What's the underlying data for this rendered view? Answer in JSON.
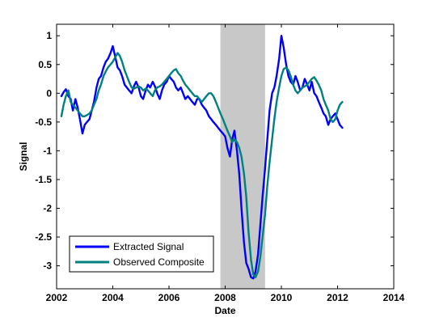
{
  "chart_data": {
    "type": "line",
    "xlabel": "Date",
    "ylabel": "Signal",
    "xlim": [
      2002,
      2014
    ],
    "ylim": [
      -3.4,
      1.2
    ],
    "xticks": [
      2002,
      2004,
      2006,
      2008,
      2010,
      2012,
      2014
    ],
    "yticks": [
      1,
      0.5,
      0,
      -0.5,
      -1,
      -1.5,
      -2,
      -2.5,
      -3
    ],
    "ytick_labels": [
      "1",
      "0.5",
      "0",
      "-0.5",
      "-1",
      "-1.5",
      "-2",
      "-2.5",
      "-3"
    ],
    "grid": false,
    "legend_position": "bottom-left",
    "shaded_region": {
      "x_start": 2007.83,
      "x_end": 2009.42,
      "color": "#c8c8c8"
    },
    "series": [
      {
        "name": "Extracted Signal",
        "color": "#0000ff",
        "points": [
          [
            2002.17,
            -0.05
          ],
          [
            2002.25,
            0.02
          ],
          [
            2002.33,
            0.07
          ],
          [
            2002.42,
            -0.05
          ],
          [
            2002.5,
            -0.1
          ],
          [
            2002.58,
            -0.3
          ],
          [
            2002.67,
            -0.1
          ],
          [
            2002.75,
            -0.25
          ],
          [
            2002.83,
            -0.45
          ],
          [
            2002.92,
            -0.7
          ],
          [
            2003.0,
            -0.55
          ],
          [
            2003.08,
            -0.5
          ],
          [
            2003.17,
            -0.45
          ],
          [
            2003.25,
            -0.3
          ],
          [
            2003.33,
            -0.15
          ],
          [
            2003.42,
            0.1
          ],
          [
            2003.5,
            0.25
          ],
          [
            2003.58,
            0.3
          ],
          [
            2003.67,
            0.45
          ],
          [
            2003.75,
            0.55
          ],
          [
            2003.83,
            0.6
          ],
          [
            2003.92,
            0.7
          ],
          [
            2004.0,
            0.82
          ],
          [
            2004.08,
            0.65
          ],
          [
            2004.17,
            0.45
          ],
          [
            2004.25,
            0.4
          ],
          [
            2004.33,
            0.3
          ],
          [
            2004.42,
            0.15
          ],
          [
            2004.5,
            0.1
          ],
          [
            2004.58,
            0.05
          ],
          [
            2004.67,
            0.0
          ],
          [
            2004.75,
            0.12
          ],
          [
            2004.83,
            0.2
          ],
          [
            2004.92,
            0.1
          ],
          [
            2005.0,
            -0.05
          ],
          [
            2005.08,
            -0.1
          ],
          [
            2005.17,
            0.05
          ],
          [
            2005.25,
            0.15
          ],
          [
            2005.33,
            0.1
          ],
          [
            2005.42,
            0.2
          ],
          [
            2005.5,
            0.12
          ],
          [
            2005.58,
            0.0
          ],
          [
            2005.67,
            -0.1
          ],
          [
            2005.75,
            0.05
          ],
          [
            2005.83,
            0.15
          ],
          [
            2005.92,
            0.2
          ],
          [
            2006.0,
            0.3
          ],
          [
            2006.08,
            0.25
          ],
          [
            2006.17,
            0.2
          ],
          [
            2006.25,
            0.1
          ],
          [
            2006.33,
            0.05
          ],
          [
            2006.42,
            0.1
          ],
          [
            2006.5,
            0.0
          ],
          [
            2006.58,
            -0.1
          ],
          [
            2006.67,
            -0.05
          ],
          [
            2006.75,
            -0.1
          ],
          [
            2006.83,
            -0.15
          ],
          [
            2006.92,
            -0.2
          ],
          [
            2007.0,
            -0.1
          ],
          [
            2007.08,
            -0.1
          ],
          [
            2007.17,
            -0.2
          ],
          [
            2007.25,
            -0.25
          ],
          [
            2007.33,
            -0.3
          ],
          [
            2007.42,
            -0.4
          ],
          [
            2007.5,
            -0.45
          ],
          [
            2007.58,
            -0.5
          ],
          [
            2007.67,
            -0.55
          ],
          [
            2007.75,
            -0.6
          ],
          [
            2007.83,
            -0.65
          ],
          [
            2007.92,
            -0.7
          ],
          [
            2008.0,
            -0.75
          ],
          [
            2008.08,
            -0.95
          ],
          [
            2008.17,
            -1.1
          ],
          [
            2008.25,
            -0.8
          ],
          [
            2008.33,
            -0.65
          ],
          [
            2008.42,
            -1.0
          ],
          [
            2008.5,
            -1.4
          ],
          [
            2008.58,
            -2.0
          ],
          [
            2008.67,
            -2.6
          ],
          [
            2008.75,
            -2.95
          ],
          [
            2008.83,
            -3.05
          ],
          [
            2008.92,
            -3.2
          ],
          [
            2009.0,
            -3.22
          ],
          [
            2009.08,
            -3.1
          ],
          [
            2009.17,
            -2.8
          ],
          [
            2009.25,
            -2.3
          ],
          [
            2009.33,
            -1.8
          ],
          [
            2009.42,
            -1.3
          ],
          [
            2009.5,
            -0.8
          ],
          [
            2009.58,
            -0.3
          ],
          [
            2009.67,
            0.0
          ],
          [
            2009.75,
            0.1
          ],
          [
            2009.83,
            0.3
          ],
          [
            2009.92,
            0.6
          ],
          [
            2010.0,
            1.0
          ],
          [
            2010.08,
            0.8
          ],
          [
            2010.17,
            0.5
          ],
          [
            2010.25,
            0.3
          ],
          [
            2010.33,
            0.2
          ],
          [
            2010.42,
            0.15
          ],
          [
            2010.5,
            0.3
          ],
          [
            2010.58,
            0.2
          ],
          [
            2010.67,
            0.05
          ],
          [
            2010.75,
            0.1
          ],
          [
            2010.83,
            0.25
          ],
          [
            2010.92,
            0.15
          ],
          [
            2011.0,
            0.05
          ],
          [
            2011.08,
            0.2
          ],
          [
            2011.17,
            0.0
          ],
          [
            2011.25,
            -0.05
          ],
          [
            2011.33,
            -0.15
          ],
          [
            2011.42,
            -0.25
          ],
          [
            2011.5,
            -0.35
          ],
          [
            2011.58,
            -0.4
          ],
          [
            2011.67,
            -0.55
          ],
          [
            2011.75,
            -0.45
          ],
          [
            2011.83,
            -0.4
          ],
          [
            2011.92,
            -0.35
          ],
          [
            2012.0,
            -0.45
          ],
          [
            2012.08,
            -0.55
          ],
          [
            2012.17,
            -0.6
          ]
        ]
      },
      {
        "name": "Observed Composite",
        "color": "#008080",
        "points": [
          [
            2002.17,
            -0.4
          ],
          [
            2002.25,
            -0.2
          ],
          [
            2002.33,
            -0.05
          ],
          [
            2002.42,
            0.05
          ],
          [
            2002.5,
            -0.15
          ],
          [
            2002.58,
            -0.2
          ],
          [
            2002.67,
            -0.25
          ],
          [
            2002.75,
            -0.3
          ],
          [
            2002.83,
            -0.35
          ],
          [
            2002.92,
            -0.4
          ],
          [
            2003.0,
            -0.4
          ],
          [
            2003.08,
            -0.38
          ],
          [
            2003.17,
            -0.35
          ],
          [
            2003.25,
            -0.3
          ],
          [
            2003.33,
            -0.2
          ],
          [
            2003.42,
            -0.1
          ],
          [
            2003.5,
            0.05
          ],
          [
            2003.58,
            0.15
          ],
          [
            2003.67,
            0.3
          ],
          [
            2003.75,
            0.38
          ],
          [
            2003.83,
            0.45
          ],
          [
            2003.92,
            0.5
          ],
          [
            2004.0,
            0.55
          ],
          [
            2004.08,
            0.62
          ],
          [
            2004.17,
            0.7
          ],
          [
            2004.25,
            0.65
          ],
          [
            2004.33,
            0.55
          ],
          [
            2004.42,
            0.4
          ],
          [
            2004.5,
            0.3
          ],
          [
            2004.58,
            0.2
          ],
          [
            2004.67,
            0.1
          ],
          [
            2004.75,
            0.08
          ],
          [
            2004.83,
            0.1
          ],
          [
            2004.92,
            0.12
          ],
          [
            2005.0,
            0.1
          ],
          [
            2005.08,
            0.05
          ],
          [
            2005.17,
            0.08
          ],
          [
            2005.25,
            0.05
          ],
          [
            2005.33,
            0.0
          ],
          [
            2005.42,
            -0.05
          ],
          [
            2005.5,
            0.05
          ],
          [
            2005.58,
            0.1
          ],
          [
            2005.67,
            0.12
          ],
          [
            2005.75,
            0.15
          ],
          [
            2005.83,
            0.2
          ],
          [
            2005.92,
            0.25
          ],
          [
            2006.0,
            0.3
          ],
          [
            2006.08,
            0.35
          ],
          [
            2006.17,
            0.4
          ],
          [
            2006.25,
            0.42
          ],
          [
            2006.33,
            0.35
          ],
          [
            2006.42,
            0.3
          ],
          [
            2006.5,
            0.22
          ],
          [
            2006.58,
            0.15
          ],
          [
            2006.67,
            0.1
          ],
          [
            2006.75,
            0.05
          ],
          [
            2006.83,
            0.0
          ],
          [
            2006.92,
            -0.05
          ],
          [
            2007.0,
            -0.05
          ],
          [
            2007.08,
            -0.1
          ],
          [
            2007.17,
            -0.15
          ],
          [
            2007.25,
            -0.1
          ],
          [
            2007.33,
            -0.05
          ],
          [
            2007.42,
            0.0
          ],
          [
            2007.5,
            0.0
          ],
          [
            2007.58,
            -0.05
          ],
          [
            2007.67,
            -0.15
          ],
          [
            2007.75,
            -0.25
          ],
          [
            2007.83,
            -0.35
          ],
          [
            2007.92,
            -0.45
          ],
          [
            2008.0,
            -0.55
          ],
          [
            2008.08,
            -0.65
          ],
          [
            2008.17,
            -0.75
          ],
          [
            2008.25,
            -0.85
          ],
          [
            2008.33,
            -0.8
          ],
          [
            2008.42,
            -0.85
          ],
          [
            2008.5,
            -0.95
          ],
          [
            2008.58,
            -1.1
          ],
          [
            2008.67,
            -1.4
          ],
          [
            2008.75,
            -1.8
          ],
          [
            2008.83,
            -2.4
          ],
          [
            2008.92,
            -2.9
          ],
          [
            2009.0,
            -3.15
          ],
          [
            2009.08,
            -3.2
          ],
          [
            2009.17,
            -3.1
          ],
          [
            2009.25,
            -2.85
          ],
          [
            2009.33,
            -2.5
          ],
          [
            2009.42,
            -2.1
          ],
          [
            2009.5,
            -1.6
          ],
          [
            2009.58,
            -1.2
          ],
          [
            2009.67,
            -0.8
          ],
          [
            2009.75,
            -0.45
          ],
          [
            2009.83,
            -0.15
          ],
          [
            2009.92,
            0.1
          ],
          [
            2010.0,
            0.3
          ],
          [
            2010.08,
            0.42
          ],
          [
            2010.17,
            0.45
          ],
          [
            2010.25,
            0.4
          ],
          [
            2010.33,
            0.3
          ],
          [
            2010.42,
            0.15
          ],
          [
            2010.5,
            0.05
          ],
          [
            2010.58,
            0.0
          ],
          [
            2010.67,
            0.05
          ],
          [
            2010.75,
            0.1
          ],
          [
            2010.83,
            0.12
          ],
          [
            2010.92,
            0.15
          ],
          [
            2011.0,
            0.2
          ],
          [
            2011.08,
            0.25
          ],
          [
            2011.17,
            0.28
          ],
          [
            2011.25,
            0.22
          ],
          [
            2011.33,
            0.15
          ],
          [
            2011.42,
            0.05
          ],
          [
            2011.5,
            -0.1
          ],
          [
            2011.58,
            -0.2
          ],
          [
            2011.67,
            -0.3
          ],
          [
            2011.75,
            -0.45
          ],
          [
            2011.83,
            -0.5
          ],
          [
            2011.92,
            -0.45
          ],
          [
            2012.0,
            -0.3
          ],
          [
            2012.08,
            -0.2
          ],
          [
            2012.17,
            -0.15
          ]
        ]
      }
    ]
  }
}
